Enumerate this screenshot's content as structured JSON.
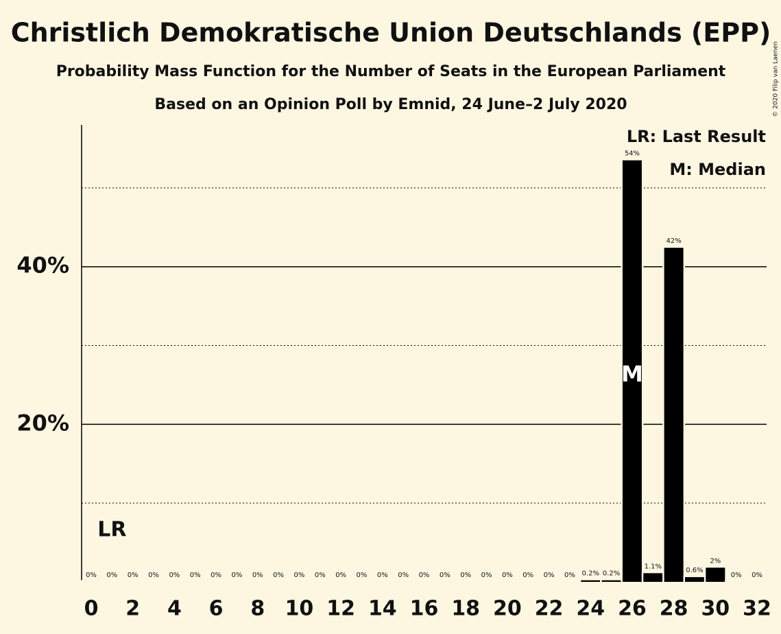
{
  "chart_data": {
    "type": "bar",
    "title": "Christlich Demokratische Union Deutschlands (EPP)",
    "subtitle": "Probability Mass Function for the Number of Seats in the European Parliament",
    "subtitle2": "Based on an Opinion Poll by Emnid, 24 June–2 July 2020",
    "credit": "© 2020 Filip van Laenen",
    "categories": [
      "0",
      null,
      "2",
      null,
      "4",
      null,
      "6",
      null,
      "8",
      null,
      "10",
      null,
      "12",
      null,
      "14",
      null,
      "16",
      null,
      "18",
      null,
      "20",
      null,
      "22",
      null,
      "24",
      null,
      "26",
      null,
      "28",
      null,
      "30",
      null,
      "32"
    ],
    "values": [
      0,
      0,
      0,
      0,
      0,
      0,
      0,
      0,
      0,
      0,
      0,
      0,
      0,
      0,
      0,
      0,
      0,
      0,
      0,
      0,
      0,
      0,
      0,
      0,
      0.2,
      0.2,
      53.5,
      1.1,
      42.4,
      0.6,
      1.8,
      0,
      0
    ],
    "value_labels": [
      "0%",
      "0%",
      "0%",
      "0%",
      "0%",
      "0%",
      "0%",
      "0%",
      "0%",
      "0%",
      "0%",
      "0%",
      "0%",
      "0%",
      "0%",
      "0%",
      "0%",
      "0%",
      "0%",
      "0%",
      "0%",
      "0%",
      "0%",
      "0%",
      "0.2%",
      "0.2%",
      "54%",
      "1.1%",
      "42%",
      "0.6%",
      "2%",
      "0%",
      "0%"
    ],
    "color": "#000000",
    "ylim": [
      0,
      58
    ],
    "yticks": [
      {
        "value": 20,
        "label": "20%"
      },
      {
        "value": 40,
        "label": "40%"
      }
    ],
    "minor_yticks": [
      10,
      30,
      50
    ],
    "annotations": [
      {
        "text": "LR",
        "x": 1
      },
      {
        "text": "M",
        "x": 26
      }
    ],
    "legend": [
      "LR: Last Result",
      "M: Median"
    ],
    "grid": true
  }
}
